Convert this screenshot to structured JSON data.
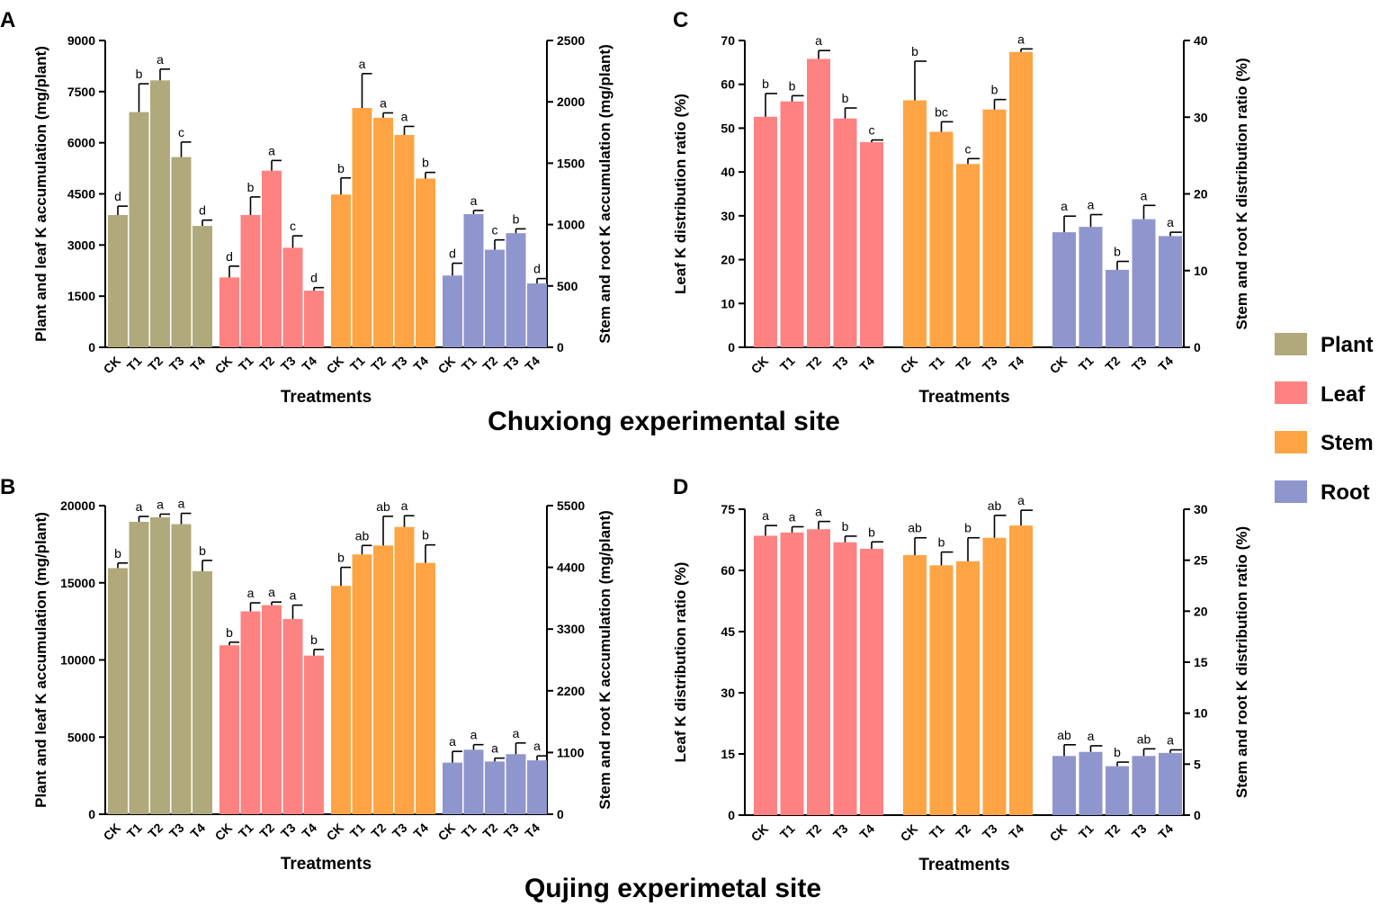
{
  "site_titles": {
    "top": "Chuxiong experimental site",
    "bottom": "Qujing experimetal site"
  },
  "legend": [
    {
      "name": "Plant",
      "color": "#b0a97b"
    },
    {
      "name": "Leaf",
      "color": "#fe8281"
    },
    {
      "name": "Stem",
      "color": "#fea445"
    },
    {
      "name": "Root",
      "color": "#8f96ce"
    }
  ],
  "chart_data": [
    {
      "panel": "A",
      "type": "bar",
      "xlabel": "Treatments",
      "ylabel_left": "Plant and leaf K accumulation (mg/plant)",
      "ylabel_right": "Stem and root K accumulation (mg/plant)",
      "ylim_left": [
        0,
        9000
      ],
      "yticks_left": [
        0,
        1500,
        3000,
        4500,
        6000,
        7500,
        9000
      ],
      "ylim_right": [
        0,
        2500
      ],
      "yticks_right": [
        0,
        500,
        1000,
        1500,
        2000,
        2500
      ],
      "categories": [
        "CK",
        "T1",
        "T2",
        "T3",
        "T4"
      ],
      "series": [
        {
          "name": "Plant",
          "axis": "left",
          "values": [
            3880,
            6900,
            7830,
            5580,
            3560
          ],
          "errors": [
            260,
            830,
            330,
            440,
            170
          ],
          "letters": [
            "d",
            "b",
            "a",
            "c",
            "d"
          ]
        },
        {
          "name": "Leaf",
          "axis": "left",
          "values": [
            2050,
            3880,
            5180,
            2920,
            1660
          ],
          "errors": [
            330,
            530,
            300,
            350,
            90
          ],
          "letters": [
            "d",
            "b",
            "a",
            "c",
            "d"
          ]
        },
        {
          "name": "Stem",
          "axis": "right",
          "values": [
            1245,
            1950,
            1870,
            1730,
            1375
          ],
          "errors": [
            135,
            280,
            40,
            70,
            50
          ],
          "letters": [
            "b",
            "a",
            "a",
            "a",
            "b"
          ]
        },
        {
          "name": "Root",
          "axis": "right",
          "values": [
            585,
            1085,
            795,
            930,
            520
          ],
          "errors": [
            100,
            30,
            80,
            35,
            40
          ],
          "letters": [
            "d",
            "a",
            "c",
            "b",
            "d"
          ]
        }
      ]
    },
    {
      "panel": "C",
      "type": "bar",
      "xlabel": "Treatments",
      "ylabel_left": "Leaf K distribution ratio (%)",
      "ylabel_right": "Stem and root K distribution ratio (%)",
      "ylim_left": [
        0,
        70
      ],
      "yticks_left": [
        0,
        10,
        20,
        30,
        40,
        50,
        60,
        70
      ],
      "ylim_right": [
        0,
        40
      ],
      "yticks_right": [
        0,
        10,
        20,
        30,
        40
      ],
      "categories": [
        "CK",
        "T1",
        "T2",
        "T3",
        "T4"
      ],
      "series": [
        {
          "name": "Leaf",
          "axis": "left",
          "values": [
            52.6,
            56.1,
            65.8,
            52.2,
            46.8
          ],
          "errors": [
            5.3,
            1.3,
            1.9,
            2.4,
            0.5
          ],
          "letters": [
            "b",
            "b",
            "a",
            "b",
            "c"
          ]
        },
        {
          "name": "Stem",
          "axis": "right",
          "values": [
            32.2,
            28.1,
            23.9,
            31.0,
            38.5
          ],
          "errors": [
            5.1,
            1.3,
            0.7,
            1.3,
            0.4
          ],
          "letters": [
            "b",
            "bc",
            "c",
            "b",
            "a"
          ]
        },
        {
          "name": "Root",
          "axis": "right",
          "values": [
            15.0,
            15.7,
            10.1,
            16.7,
            14.5
          ],
          "errors": [
            2.1,
            1.6,
            1.1,
            1.8,
            0.5
          ],
          "letters": [
            "a",
            "a",
            "b",
            "a",
            "a"
          ]
        }
      ]
    },
    {
      "panel": "B",
      "type": "bar",
      "xlabel": "Treatments",
      "ylabel_left": "Plant and leaf K accumulation (mg/plant)",
      "ylabel_right": "Stem and root K accumulation (mg/plant)",
      "ylim_left": [
        0,
        20000
      ],
      "yticks_left": [
        0,
        5000,
        10000,
        15000,
        20000
      ],
      "ylim_right": [
        0,
        5500
      ],
      "yticks_right": [
        0,
        1100,
        2200,
        3300,
        4400,
        5500
      ],
      "categories": [
        "CK",
        "T1",
        "T2",
        "T3",
        "T4"
      ],
      "series": [
        {
          "name": "Plant",
          "axis": "left",
          "values": [
            15950,
            18950,
            19250,
            18800,
            15750
          ],
          "errors": [
            330,
            350,
            200,
            700,
            700
          ],
          "letters": [
            "b",
            "a",
            "a",
            "a",
            "b"
          ]
        },
        {
          "name": "Leaf",
          "axis": "left",
          "values": [
            10950,
            13150,
            13550,
            12650,
            10280
          ],
          "errors": [
            200,
            550,
            200,
            900,
            400
          ],
          "letters": [
            "b",
            "a",
            "a",
            "a",
            "b"
          ]
        },
        {
          "name": "Stem",
          "axis": "right",
          "values": [
            4070,
            4630,
            4790,
            5120,
            4480
          ],
          "errors": [
            330,
            160,
            520,
            200,
            320
          ],
          "letters": [
            "b",
            "ab",
            "ab",
            "a",
            "b"
          ]
        },
        {
          "name": "Root",
          "axis": "right",
          "values": [
            920,
            1150,
            940,
            1070,
            960
          ],
          "errors": [
            200,
            90,
            60,
            200,
            80
          ],
          "letters": [
            "a",
            "a",
            "a",
            "a",
            "a"
          ]
        }
      ]
    },
    {
      "panel": "D",
      "type": "bar",
      "xlabel": "Treatments",
      "ylabel_left": "Leaf K distribution ratio (%)",
      "ylabel_right": "Stem and root K distribution ratio (%)",
      "ylim_left": [
        0,
        75
      ],
      "yticks_left": [
        0,
        15,
        30,
        45,
        60,
        75
      ],
      "ylim_right": [
        0,
        30
      ],
      "yticks_right": [
        0,
        5,
        10,
        15,
        20,
        25,
        30
      ],
      "categories": [
        "CK",
        "T1",
        "T2",
        "T3",
        "T4"
      ],
      "series": [
        {
          "name": "Leaf",
          "axis": "left",
          "values": [
            68.5,
            69.3,
            70.1,
            66.9,
            65.3
          ],
          "errors": [
            2.5,
            1.4,
            1.9,
            1.5,
            1.7
          ],
          "letters": [
            "a",
            "a",
            "a",
            "b",
            "b"
          ]
        },
        {
          "name": "Stem",
          "axis": "right",
          "values": [
            25.5,
            24.5,
            24.9,
            27.2,
            28.4
          ],
          "errors": [
            1.7,
            1.3,
            2.3,
            2.2,
            1.5
          ],
          "letters": [
            "ab",
            "b",
            "b",
            "ab",
            "a"
          ]
        },
        {
          "name": "Root",
          "axis": "right",
          "values": [
            5.8,
            6.2,
            4.8,
            5.8,
            6.1
          ],
          "errors": [
            1.1,
            0.6,
            0.4,
            0.7,
            0.3
          ],
          "letters": [
            "ab",
            "a",
            "b",
            "ab",
            "a"
          ]
        }
      ]
    }
  ]
}
